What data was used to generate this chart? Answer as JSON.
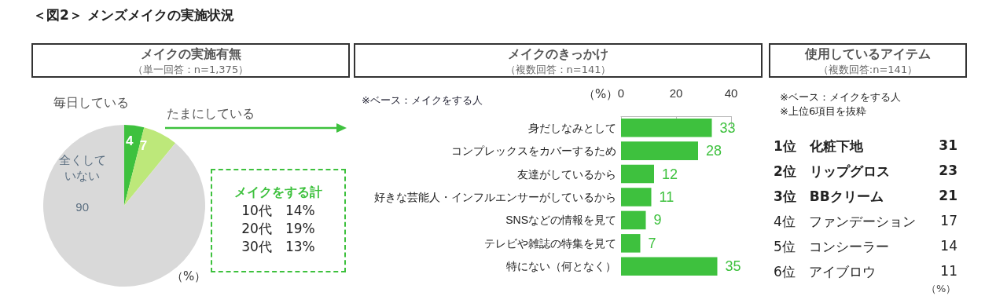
{
  "chart_data": [
    {
      "type": "pie",
      "title": "メイクの実施有無",
      "subtitle": "（単一回答：n=1,375）",
      "categories": [
        "毎日している",
        "たまにしている",
        "全くしていない"
      ],
      "values": [
        4,
        7,
        90
      ],
      "colors": [
        "#3ec13e",
        "#bde87a",
        "#d9d9d9"
      ],
      "data_labels": true,
      "annotations": [
        "＜図2＞ メンズメイクの実施状況",
        "メイクをする計",
        "10代　14%",
        "20代　19%",
        "30代　13%",
        "（%）"
      ]
    },
    {
      "type": "bar",
      "orientation": "horizontal",
      "title": "メイクのきっかけ",
      "subtitle": "（複数回答：n=141）",
      "xlabel": "（%）",
      "categories": [
        "身だしなみとして",
        "コンプレックスをカバーするため",
        "友達がしているから",
        "好きな芸能人・インフルエンサーがしているから",
        "SNSなどの情報を見て",
        "テレビや雑誌の特集を見て",
        "特にない（何となく）"
      ],
      "values": [
        33,
        28,
        12,
        11,
        9,
        7,
        35
      ],
      "color": "#3ec13e",
      "xlim": [
        0,
        40
      ],
      "xticks": [
        0,
        20,
        40
      ],
      "data_labels": true,
      "grid": false,
      "annotations": [
        "※ベース：メイクをする人"
      ]
    },
    {
      "type": "other",
      "title": "使用しているアイテム",
      "subtitle": "（複数回答:n=141）",
      "categories": [
        "1位　化粧下地",
        "2位　リップグロス",
        "3位　BBクリーム",
        "4位　ファンデーション",
        "5位　コンシーラー",
        "6位　アイブロウ"
      ],
      "values": [
        31,
        23,
        21,
        17,
        14,
        11
      ],
      "data_labels": true,
      "annotations": [
        "※ベース：メイクをする人",
        "※上位6項目を抜粋",
        "（%）"
      ]
    }
  ]
}
